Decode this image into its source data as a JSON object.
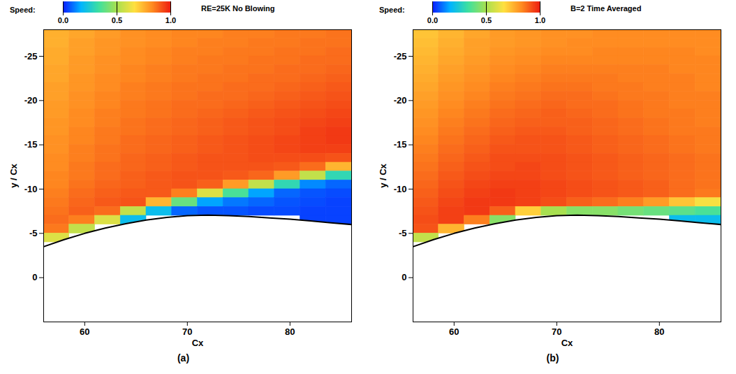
{
  "chart_data": [
    {
      "type": "heatmap",
      "title": "RE=25K  No Blowing",
      "caption": "(a)",
      "x_label": "Cx",
      "y_label": "y / Cx",
      "xlim": [
        56,
        86
      ],
      "ylim": [
        5,
        -28
      ],
      "xticks": [
        60,
        70,
        80
      ],
      "yticks": [
        -25,
        -20,
        -15,
        -10,
        -5,
        0
      ],
      "colorbar": {
        "label": "Speed:",
        "range": [
          0,
          1
        ],
        "ticks": [
          0,
          0.5,
          1
        ]
      },
      "x": [
        57.25,
        59.75,
        62.25,
        64.75,
        67.25,
        69.75,
        72.25,
        74.75,
        77.25,
        79.75,
        82.25,
        84.75
      ],
      "y": [
        -27.5,
        -26.5,
        -25.5,
        -24.5,
        -23.5,
        -22.5,
        -21.5,
        -20.5,
        -19.5,
        -18.5,
        -17.5,
        -16.5,
        -15.5,
        -14.5,
        -13.5,
        -12.5,
        -11.5,
        -10.5,
        -9.5,
        -8.5,
        -7.5,
        -6.5,
        -5.5,
        -4.5,
        -3.5
      ],
      "values": [
        [
          0.76,
          0.78,
          0.8,
          0.82,
          0.83,
          0.84,
          0.84,
          0.85,
          0.85,
          0.86,
          0.86,
          0.87
        ],
        [
          0.76,
          0.79,
          0.81,
          0.82,
          0.83,
          0.84,
          0.85,
          0.85,
          0.86,
          0.86,
          0.87,
          0.87
        ],
        [
          0.77,
          0.79,
          0.81,
          0.83,
          0.84,
          0.85,
          0.85,
          0.86,
          0.86,
          0.87,
          0.87,
          0.88
        ],
        [
          0.77,
          0.8,
          0.82,
          0.83,
          0.84,
          0.85,
          0.86,
          0.86,
          0.87,
          0.87,
          0.88,
          0.88
        ],
        [
          0.78,
          0.8,
          0.82,
          0.84,
          0.85,
          0.86,
          0.86,
          0.87,
          0.87,
          0.88,
          0.88,
          0.89
        ],
        [
          0.78,
          0.81,
          0.83,
          0.84,
          0.85,
          0.86,
          0.87,
          0.87,
          0.88,
          0.88,
          0.89,
          0.9
        ],
        [
          0.79,
          0.81,
          0.83,
          0.85,
          0.86,
          0.87,
          0.87,
          0.88,
          0.88,
          0.89,
          0.9,
          0.91
        ],
        [
          0.79,
          0.82,
          0.84,
          0.85,
          0.86,
          0.87,
          0.88,
          0.88,
          0.89,
          0.9,
          0.91,
          0.92
        ],
        [
          0.8,
          0.82,
          0.84,
          0.86,
          0.87,
          0.88,
          0.88,
          0.89,
          0.9,
          0.91,
          0.92,
          0.93
        ],
        [
          0.8,
          0.83,
          0.85,
          0.86,
          0.87,
          0.88,
          0.89,
          0.9,
          0.91,
          0.92,
          0.93,
          0.94
        ],
        [
          0.81,
          0.83,
          0.85,
          0.87,
          0.88,
          0.89,
          0.9,
          0.91,
          0.92,
          0.93,
          0.94,
          0.95
        ],
        [
          0.81,
          0.84,
          0.86,
          0.87,
          0.88,
          0.89,
          0.9,
          0.91,
          0.92,
          0.93,
          0.95,
          0.96
        ],
        [
          0.82,
          0.84,
          0.86,
          0.88,
          0.89,
          0.9,
          0.91,
          0.92,
          0.93,
          0.94,
          0.95,
          0.96
        ],
        [
          0.82,
          0.85,
          0.87,
          0.88,
          0.89,
          0.9,
          0.91,
          0.92,
          0.93,
          0.94,
          0.95,
          0.95
        ],
        [
          0.83,
          0.85,
          0.87,
          0.89,
          0.9,
          0.91,
          0.92,
          0.92,
          0.93,
          0.93,
          0.93,
          0.92
        ],
        [
          0.83,
          0.86,
          0.88,
          0.89,
          0.9,
          0.91,
          0.92,
          0.92,
          0.92,
          0.91,
          0.88,
          0.75
        ],
        [
          0.84,
          0.86,
          0.88,
          0.9,
          0.91,
          0.92,
          0.92,
          0.91,
          0.89,
          0.8,
          0.55,
          0.3
        ],
        [
          0.84,
          0.87,
          0.89,
          0.9,
          0.91,
          0.92,
          0.9,
          0.8,
          0.55,
          0.3,
          0.12,
          0.08
        ],
        [
          0.85,
          0.88,
          0.9,
          0.91,
          0.91,
          0.85,
          0.6,
          0.35,
          0.15,
          0.08,
          0.06,
          0.05
        ],
        [
          0.86,
          0.89,
          0.91,
          0.92,
          0.75,
          0.4,
          0.15,
          0.1,
          0.08,
          0.06,
          0.05,
          0.04
        ],
        [
          0.87,
          0.9,
          0.88,
          0.55,
          0.2,
          0.08,
          0.06,
          0.06,
          0.05,
          0.05,
          0.04,
          0.04
        ],
        [
          0.88,
          0.85,
          0.6,
          0.2,
          null,
          null,
          null,
          null,
          null,
          null,
          0.04,
          0.04
        ],
        [
          0.86,
          0.55,
          null,
          null,
          null,
          null,
          null,
          null,
          null,
          null,
          null,
          null
        ],
        [
          0.6,
          null,
          null,
          null,
          null,
          null,
          null,
          null,
          null,
          null,
          null,
          null
        ],
        [
          null,
          null,
          null,
          null,
          null,
          null,
          null,
          null,
          null,
          null,
          null,
          null
        ]
      ],
      "surface": {
        "x": [
          56,
          58,
          60,
          62,
          64,
          66,
          68,
          70,
          72,
          74,
          76,
          78,
          80,
          82,
          84,
          86
        ],
        "y": [
          -3.5,
          -4.3,
          -5.0,
          -5.6,
          -6.1,
          -6.5,
          -6.8,
          -7.0,
          -7.05,
          -7.0,
          -6.9,
          -6.75,
          -6.6,
          -6.4,
          -6.2,
          -6.0
        ]
      }
    },
    {
      "type": "heatmap",
      "title": "B=2  Time Averaged",
      "caption": "(b)",
      "x_label": "Cx",
      "y_label": "y / Cx",
      "xlim": [
        56,
        86
      ],
      "ylim": [
        5,
        -28
      ],
      "xticks": [
        60,
        70,
        80
      ],
      "yticks": [
        -25,
        -20,
        -15,
        -10,
        -5,
        0
      ],
      "colorbar": {
        "label": "Speed:",
        "range": [
          0,
          1
        ],
        "ticks": [
          0,
          0.5,
          1
        ]
      },
      "x": [
        57.25,
        59.75,
        62.25,
        64.75,
        67.25,
        69.75,
        72.25,
        74.75,
        77.25,
        79.75,
        82.25,
        84.75
      ],
      "y": [
        -27.5,
        -26.5,
        -25.5,
        -24.5,
        -23.5,
        -22.5,
        -21.5,
        -20.5,
        -19.5,
        -18.5,
        -17.5,
        -16.5,
        -15.5,
        -14.5,
        -13.5,
        -12.5,
        -11.5,
        -10.5,
        -9.5,
        -8.5,
        -7.5,
        -6.5,
        -5.5,
        -4.5,
        -3.5
      ],
      "values": [
        [
          0.72,
          0.75,
          0.78,
          0.8,
          0.81,
          0.82,
          0.82,
          0.83,
          0.83,
          0.83,
          0.83,
          0.83
        ],
        [
          0.73,
          0.76,
          0.79,
          0.8,
          0.81,
          0.82,
          0.83,
          0.83,
          0.83,
          0.83,
          0.83,
          0.83
        ],
        [
          0.74,
          0.77,
          0.79,
          0.81,
          0.82,
          0.83,
          0.83,
          0.84,
          0.84,
          0.84,
          0.84,
          0.83
        ],
        [
          0.75,
          0.78,
          0.8,
          0.82,
          0.83,
          0.84,
          0.84,
          0.84,
          0.84,
          0.84,
          0.84,
          0.84
        ],
        [
          0.76,
          0.79,
          0.81,
          0.83,
          0.84,
          0.85,
          0.85,
          0.85,
          0.85,
          0.85,
          0.84,
          0.84
        ],
        [
          0.77,
          0.8,
          0.82,
          0.84,
          0.85,
          0.86,
          0.86,
          0.86,
          0.85,
          0.85,
          0.85,
          0.84
        ],
        [
          0.78,
          0.81,
          0.83,
          0.85,
          0.86,
          0.87,
          0.87,
          0.86,
          0.86,
          0.85,
          0.85,
          0.84
        ],
        [
          0.79,
          0.82,
          0.84,
          0.86,
          0.87,
          0.88,
          0.88,
          0.87,
          0.86,
          0.86,
          0.85,
          0.85
        ],
        [
          0.8,
          0.83,
          0.85,
          0.87,
          0.88,
          0.89,
          0.88,
          0.88,
          0.87,
          0.86,
          0.85,
          0.85
        ],
        [
          0.81,
          0.84,
          0.86,
          0.88,
          0.89,
          0.9,
          0.89,
          0.88,
          0.87,
          0.86,
          0.86,
          0.85
        ],
        [
          0.82,
          0.85,
          0.87,
          0.89,
          0.9,
          0.9,
          0.9,
          0.89,
          0.88,
          0.87,
          0.86,
          0.85
        ],
        [
          0.83,
          0.86,
          0.88,
          0.9,
          0.91,
          0.91,
          0.9,
          0.89,
          0.88,
          0.87,
          0.86,
          0.86
        ],
        [
          0.84,
          0.87,
          0.89,
          0.91,
          0.92,
          0.92,
          0.91,
          0.9,
          0.89,
          0.88,
          0.87,
          0.86
        ],
        [
          0.85,
          0.88,
          0.9,
          0.92,
          0.92,
          0.92,
          0.91,
          0.9,
          0.89,
          0.88,
          0.87,
          0.86
        ],
        [
          0.86,
          0.89,
          0.91,
          0.93,
          0.93,
          0.93,
          0.92,
          0.91,
          0.9,
          0.89,
          0.88,
          0.87
        ],
        [
          0.87,
          0.9,
          0.92,
          0.93,
          0.94,
          0.93,
          0.92,
          0.91,
          0.9,
          0.89,
          0.88,
          0.87
        ],
        [
          0.88,
          0.91,
          0.93,
          0.94,
          0.94,
          0.93,
          0.92,
          0.91,
          0.9,
          0.89,
          0.88,
          0.87
        ],
        [
          0.89,
          0.92,
          0.94,
          0.95,
          0.95,
          0.94,
          0.93,
          0.92,
          0.91,
          0.9,
          0.88,
          0.87
        ],
        [
          0.9,
          0.93,
          0.95,
          0.96,
          0.95,
          0.94,
          0.93,
          0.92,
          0.91,
          0.9,
          0.88,
          0.86
        ],
        [
          0.91,
          0.94,
          0.96,
          0.96,
          0.95,
          0.93,
          0.9,
          0.88,
          0.85,
          0.8,
          0.72,
          0.65
        ],
        [
          0.92,
          0.95,
          0.96,
          0.9,
          0.7,
          0.5,
          0.45,
          0.45,
          0.42,
          0.4,
          0.38,
          0.35
        ],
        [
          0.93,
          0.95,
          0.85,
          0.45,
          null,
          null,
          null,
          null,
          null,
          null,
          0.2,
          0.2
        ],
        [
          0.92,
          0.75,
          null,
          null,
          null,
          null,
          null,
          null,
          null,
          null,
          null,
          null
        ],
        [
          0.55,
          null,
          null,
          null,
          null,
          null,
          null,
          null,
          null,
          null,
          null,
          null
        ],
        [
          null,
          null,
          null,
          null,
          null,
          null,
          null,
          null,
          null,
          null,
          null,
          null
        ]
      ],
      "surface": {
        "x": [
          56,
          58,
          60,
          62,
          64,
          66,
          68,
          70,
          72,
          74,
          76,
          78,
          80,
          82,
          84,
          86
        ],
        "y": [
          -3.5,
          -4.3,
          -5.0,
          -5.6,
          -6.1,
          -6.5,
          -6.8,
          -7.0,
          -7.05,
          -7.0,
          -6.9,
          -6.75,
          -6.6,
          -6.4,
          -6.2,
          -6.0
        ]
      }
    }
  ]
}
